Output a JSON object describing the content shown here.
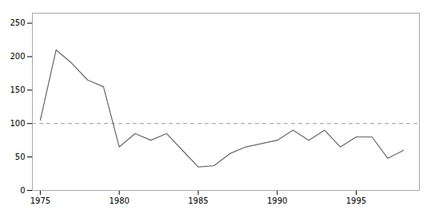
{
  "chart_data": {
    "type": "line",
    "x": [
      1975,
      1976,
      1977,
      1978,
      1979,
      1980,
      1981,
      1982,
      1983,
      1984,
      1985,
      1986,
      1987,
      1988,
      1989,
      1990,
      1991,
      1992,
      1993,
      1994,
      1995,
      1996,
      1997,
      1998
    ],
    "values": [
      105,
      210,
      190,
      165,
      155,
      65,
      85,
      75,
      85,
      60,
      35,
      37,
      55,
      65,
      70,
      75,
      90,
      75,
      90,
      65,
      80,
      80,
      48,
      60
    ],
    "color": "#666666",
    "line_style": "solid",
    "reference_line": {
      "y": 100,
      "color": "#999999",
      "line_style": "dashed"
    },
    "xlim": [
      1974.5,
      1999.0
    ],
    "ylim": [
      0,
      265
    ],
    "xticks": [
      1975,
      1980,
      1985,
      1990,
      1995
    ],
    "yticks": [
      0,
      50,
      100,
      150,
      200,
      250
    ],
    "grid": false
  }
}
